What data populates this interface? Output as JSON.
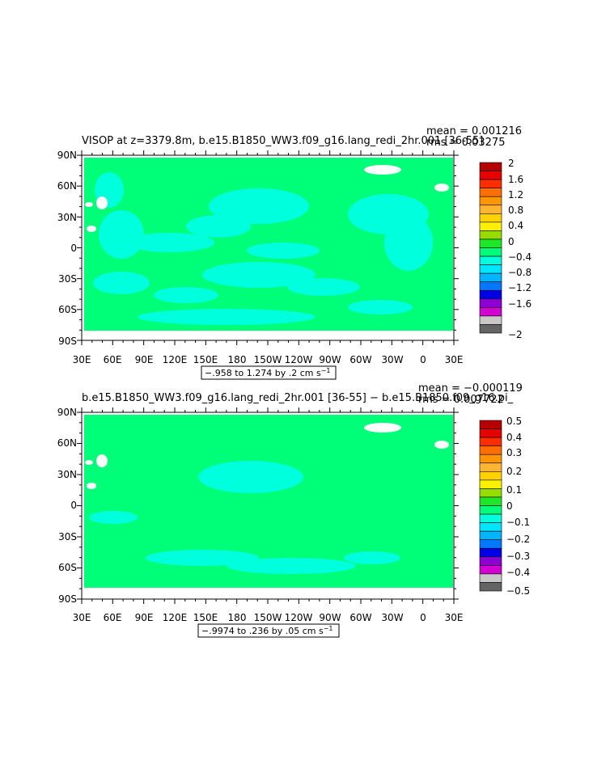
{
  "chart_data": [
    {
      "type": "heatmap",
      "title": "VISOP at z=3379.8m, b.e15.B1850_WW3.f09_g16.lang_redi_2hr.001 [36-55]",
      "stats_line1": "mean = 0.001216",
      "stats_line2": "rms = 0.03275",
      "x_tick_labels": [
        "30E",
        "60E",
        "90E",
        "120E",
        "150E",
        "180",
        "150W",
        "120W",
        "90W",
        "60W",
        "30W",
        "0",
        "30E"
      ],
      "y_tick_labels": [
        "90N",
        "60N",
        "30N",
        "0",
        "30S",
        "60S",
        "90S"
      ],
      "xlim": [
        30,
        390
      ],
      "ylim": [
        -90,
        90
      ],
      "range_label": "−.958 to 1.274 by .2 cm s",
      "range_unit_sup": "−1",
      "colorbar_labels": [
        "2",
        "1.6",
        "1.2",
        "0.8",
        "0.4",
        "0",
        "−0.4",
        "−0.8",
        "−1.2",
        "−1.6",
        "−2"
      ],
      "colorbar_colors": [
        "#b40000",
        "#e60000",
        "#ff2d00",
        "#ff6e00",
        "#ff9600",
        "#ffb432",
        "#ffd200",
        "#fff000",
        "#96dc00",
        "#1ee628",
        "#00ff78",
        "#00ffdc",
        "#00e6ff",
        "#00b4ff",
        "#0078ff",
        "#0000e6",
        "#8c00d2",
        "#d200d2",
        "#c8c8c8",
        "#646464"
      ],
      "dominant_color": "#00ff78",
      "secondary_color": "#00ffdc"
    },
    {
      "type": "heatmap",
      "title": "b.e15.B1850_WW3.f09_g16.lang_redi_2hr.001 [36-55] − b.e15.B1850.f09_g16.pi_",
      "stats_line1": "mean = −0.000119",
      "stats_line2": "rms = 0.007722",
      "x_tick_labels": [
        "30E",
        "60E",
        "90E",
        "120E",
        "150E",
        "180",
        "150W",
        "120W",
        "90W",
        "60W",
        "30W",
        "0",
        "30E"
      ],
      "y_tick_labels": [
        "90N",
        "60N",
        "30N",
        "0",
        "30S",
        "60S",
        "90S"
      ],
      "xlim": [
        30,
        390
      ],
      "ylim": [
        -90,
        90
      ],
      "range_label": "−.9974 to .236 by .05 cm s",
      "range_unit_sup": "−1",
      "colorbar_labels": [
        "0.5",
        "0.4",
        "0.3",
        "0.2",
        "0.1",
        "0",
        "−0.1",
        "−0.2",
        "−0.3",
        "−0.4",
        "−0.5"
      ],
      "colorbar_colors": [
        "#b40000",
        "#e60000",
        "#ff2d00",
        "#ff6e00",
        "#ff9600",
        "#ffb432",
        "#ffd200",
        "#fff000",
        "#96dc00",
        "#1ee628",
        "#00ff78",
        "#00ffdc",
        "#00e6ff",
        "#00b4ff",
        "#0078ff",
        "#0000e6",
        "#8c00d2",
        "#d200d2",
        "#c8c8c8",
        "#646464"
      ],
      "dominant_color": "#00ff78",
      "secondary_color": "#00ffdc"
    }
  ]
}
